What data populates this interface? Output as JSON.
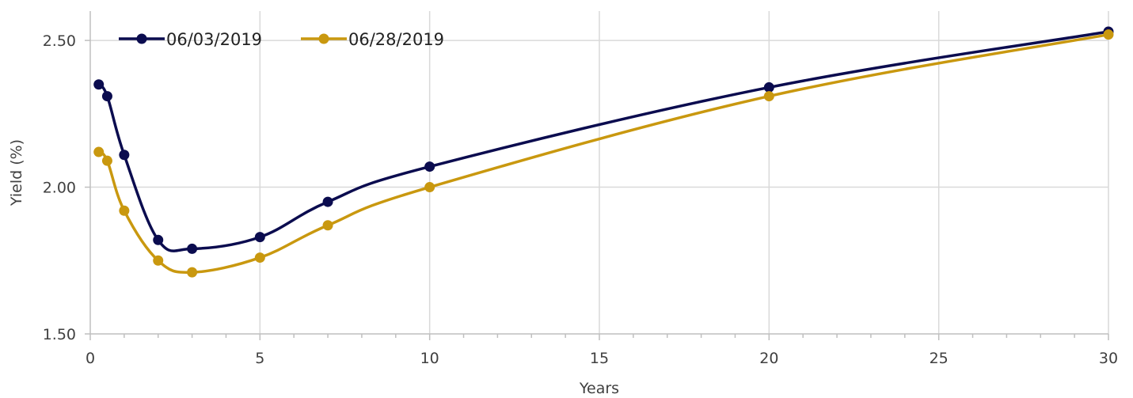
{
  "chart_data": {
    "type": "line",
    "title": "",
    "xlabel": "Years",
    "ylabel": "Yield (%)",
    "xlim": [
      0,
      30
    ],
    "ylim": [
      1.5,
      2.6
    ],
    "y_ticks": [
      1.5,
      2.0,
      2.5
    ],
    "y_tick_labels": [
      "1.50",
      "2.00",
      "2.50"
    ],
    "x_ticks": [
      0,
      5,
      10,
      15,
      20,
      25,
      30
    ],
    "x_tick_labels": [
      "0",
      "5",
      "10",
      "15",
      "20",
      "25",
      "30"
    ],
    "grid": true,
    "legend_placement": "top-left",
    "series": [
      {
        "name": "06/03/2019",
        "color": "#0b0c4f",
        "x": [
          0.25,
          0.5,
          1,
          2,
          3,
          5,
          7,
          10,
          20,
          30
        ],
        "y": [
          2.35,
          2.31,
          2.11,
          1.82,
          1.79,
          1.83,
          1.95,
          2.07,
          2.34,
          2.53
        ]
      },
      {
        "name": "06/28/2019",
        "color": "#c9980f",
        "x": [
          0.25,
          0.5,
          1,
          2,
          3,
          5,
          7,
          10,
          20,
          30
        ],
        "y": [
          2.12,
          2.09,
          1.92,
          1.75,
          1.71,
          1.76,
          1.87,
          2.0,
          2.31,
          2.52
        ]
      }
    ]
  }
}
